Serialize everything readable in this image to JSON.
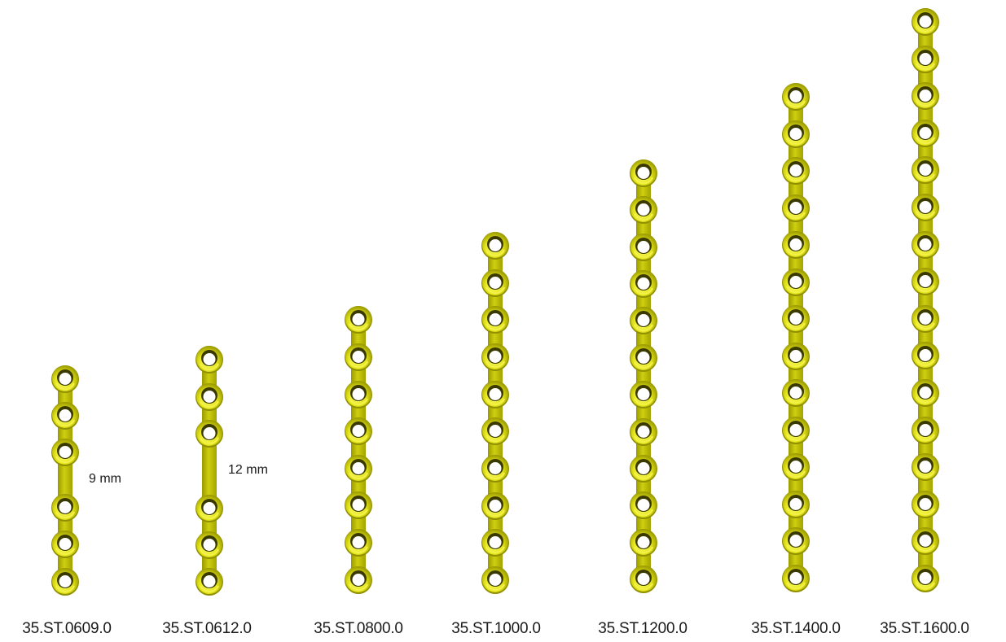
{
  "colors": {
    "plate_fill": "#c8c800",
    "plate_dark": "#8f8f00",
    "hole_rim_light": "#f2f24a",
    "hole_rim_dark": "#3a3a00",
    "hole_center": "#ffffff",
    "text": "#1a1a1a"
  },
  "plates": [
    {
      "code": "35.ST.0609.0",
      "holes": 6,
      "center_gap": "9 mm"
    },
    {
      "code": "35.ST.0612.0",
      "holes": 6,
      "center_gap": "12 mm"
    },
    {
      "code": "35.ST.0800.0",
      "holes": 8
    },
    {
      "code": "35.ST.1000.0",
      "holes": 10
    },
    {
      "code": "35.ST.1200.0",
      "holes": 12
    },
    {
      "code": "35.ST.1400.0",
      "holes": 14
    },
    {
      "code": "35.ST.1600.0",
      "holes": 16
    }
  ]
}
